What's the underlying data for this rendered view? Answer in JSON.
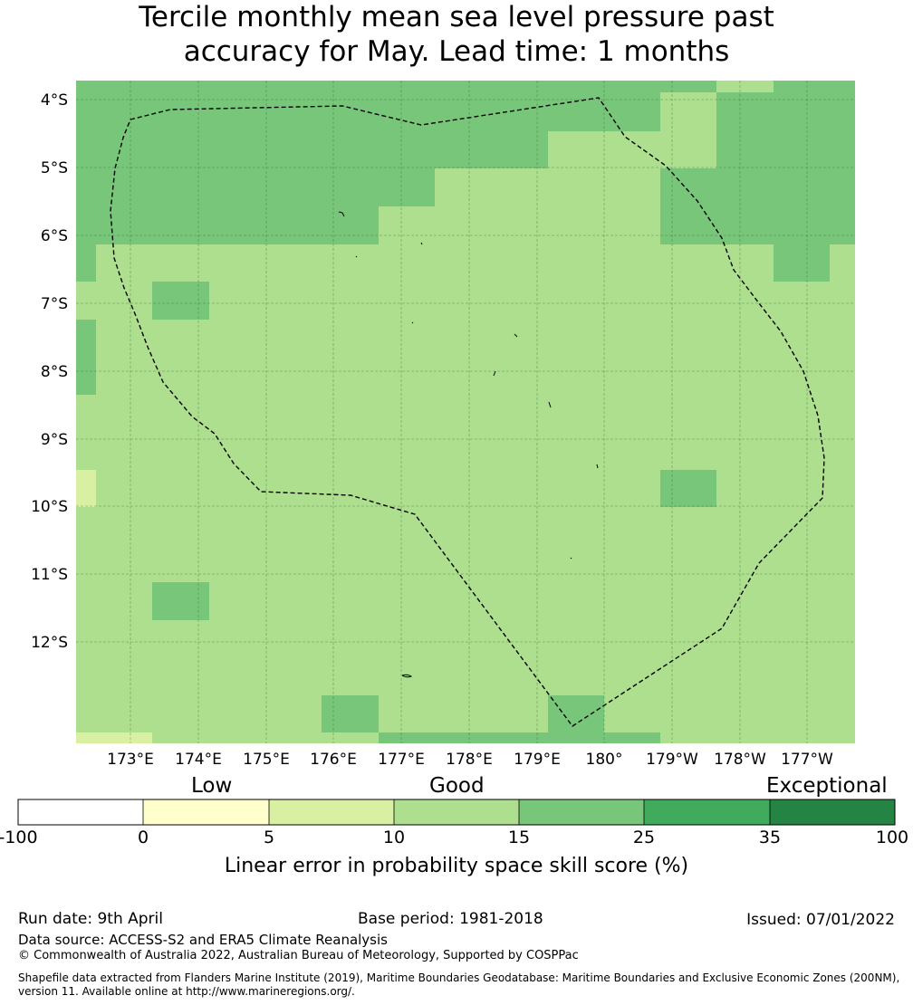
{
  "title_line1": "Tercile monthly mean sea level pressure past",
  "title_line2": "accuracy for May. Lead time: 1 months",
  "map": {
    "lon_labels": [
      "173°E",
      "174°E",
      "175°E",
      "176°E",
      "177°E",
      "178°E",
      "179°E",
      "180°",
      "179°W",
      "178°W",
      "177°W"
    ],
    "lat_labels": [
      "4°S",
      "5°S",
      "6°S",
      "7°S",
      "8°S",
      "9°S",
      "10°S",
      "11°S",
      "12°S"
    ],
    "cell_colors": {
      "c10_15": "#addf8e",
      "c15_25": "#78c679",
      "c5_10": "#d9f0a3",
      "c0_5": "#ffffcc"
    }
  },
  "colorbar": {
    "categories": [
      "Low",
      "Good",
      "Exceptional"
    ],
    "ticks": [
      "-100",
      "0",
      "5",
      "10",
      "15",
      "25",
      "35",
      "100"
    ],
    "colors": [
      "#ffffff",
      "#ffffcc",
      "#d9f0a3",
      "#addf8e",
      "#78c679",
      "#41ab5d",
      "#238443"
    ],
    "title": "Linear error in probability space skill score (%)"
  },
  "footer": {
    "run_date": "Run date: 9th April",
    "base_period": "Base period: 1981-2018",
    "issued": "Issued: 07/01/2022",
    "data_source": "Data source: ACCESS-S2 and ERA5 Climate Reanalysis",
    "copyright": "© Commonwealth of Australia 2022, Australian Bureau of Meteorology, Supported by COSPPac",
    "shapefile_line1": "Shapefile data extracted from Flanders Marine Institute (2019), Maritime Boundaries Geodatabase: Maritime Boundaries and Exclusive Economic Zones (200NM),",
    "shapefile_line2": "version 11. Available online at http://www.marineregions.org/."
  }
}
